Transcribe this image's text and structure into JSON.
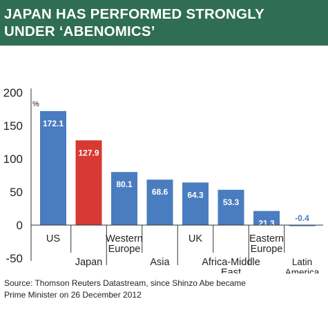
{
  "title": {
    "line1": "JAPAN HAS PERFORMED STRONGLY",
    "line2": "UNDER ‘ABENOMICS’"
  },
  "source": {
    "line1": "Source: Thomson Reuters Datastream, since Shinzo Abe became",
    "line2": "Prime Minister on 26 December 2012"
  },
  "colors": {
    "header": "#2f6e54",
    "bar": "#4a7cc0",
    "highlight": "#d63a33"
  },
  "chart_data": {
    "type": "bar",
    "unit_label": "%",
    "categories": [
      [
        "US"
      ],
      [
        "Japan"
      ],
      [
        "Western",
        "Europe"
      ],
      [
        "Asia"
      ],
      [
        "UK"
      ],
      [
        "Africa-Middle",
        "East"
      ],
      [
        "Eastern",
        "Europe"
      ],
      [
        "Latin",
        "America"
      ]
    ],
    "values": [
      172.1,
      127.9,
      80.1,
      68.6,
      64.3,
      53.3,
      21.3,
      -0.4
    ],
    "data_labels": [
      "172.1",
      "127.9",
      "80.1",
      "68.6",
      "64.3",
      "53.3",
      "21.3",
      "-0.4"
    ],
    "highlight_index": 1,
    "yticks": [
      "200",
      "150",
      "100",
      "50",
      "0",
      "-50"
    ],
    "ytick_values": [
      200,
      150,
      100,
      50,
      0,
      -50
    ],
    "ylim": [
      -50,
      200
    ],
    "grid": false
  }
}
